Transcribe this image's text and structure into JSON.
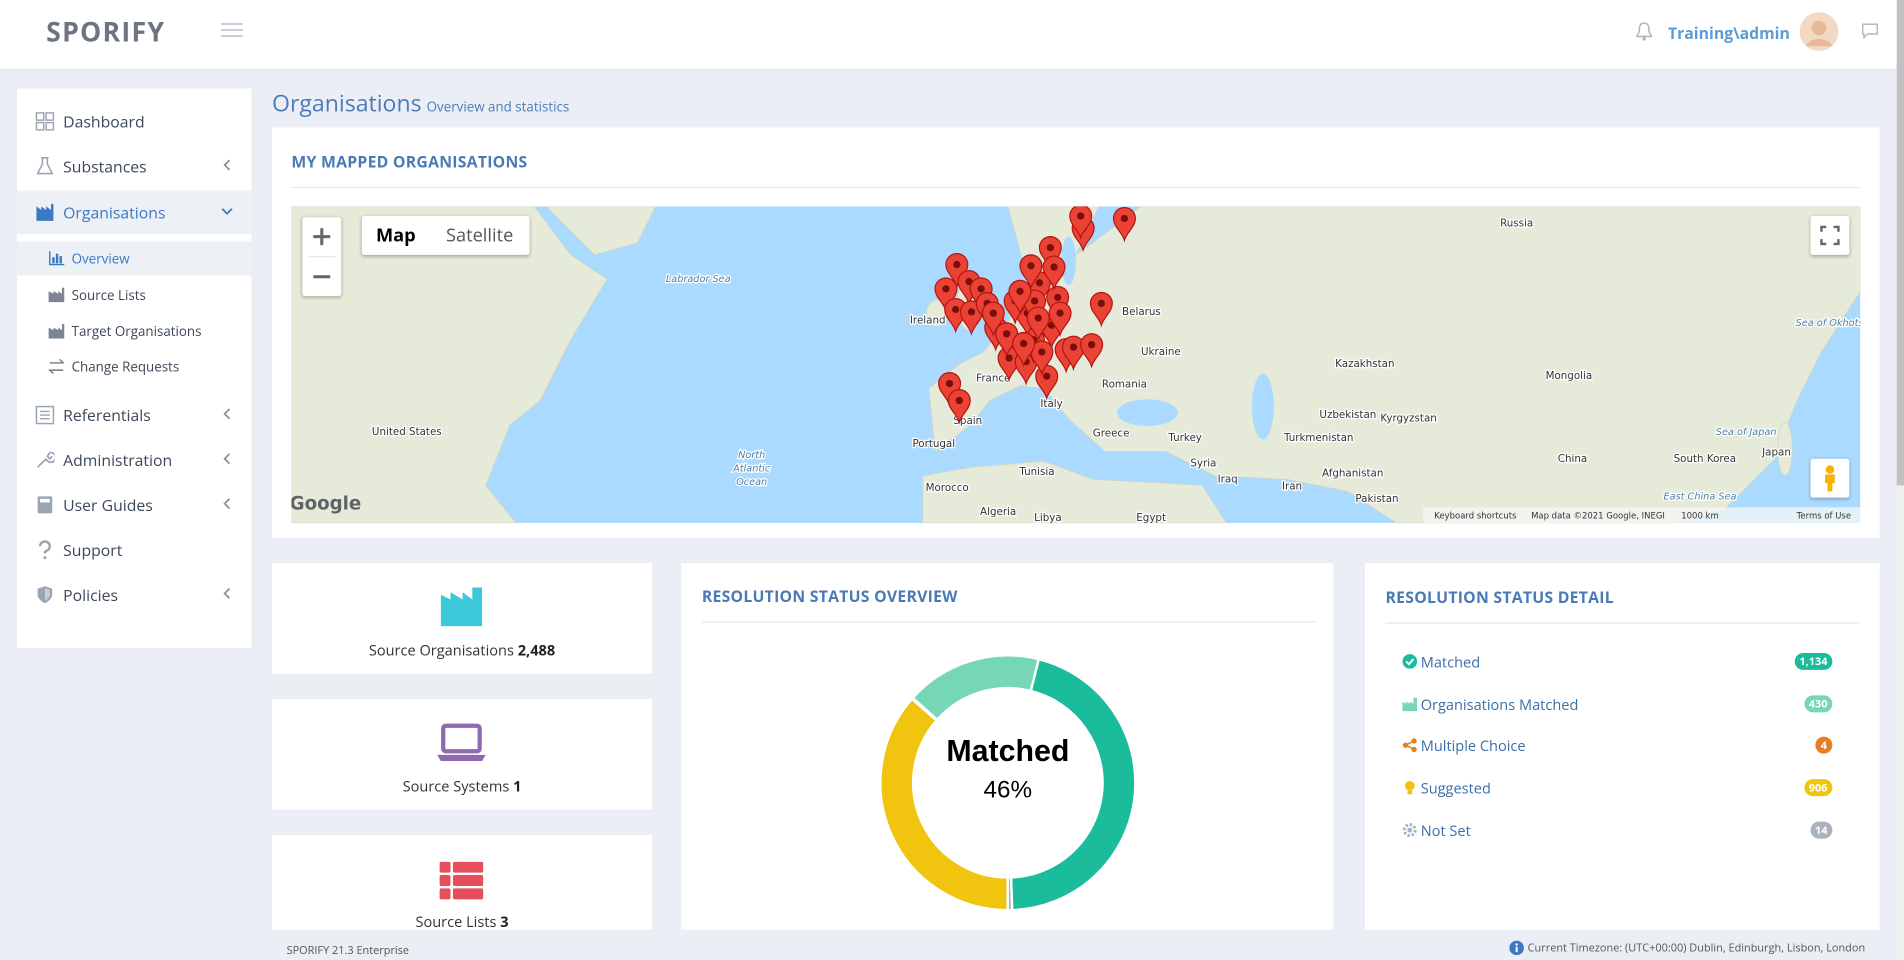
{
  "header": {
    "logo": "SPORIFY",
    "user": "Training\\admin"
  },
  "sidebar": {
    "items": [
      "Dashboard",
      "Substances",
      "Organisations",
      "Referentials",
      "Administration",
      "User Guides",
      "Support",
      "Policies"
    ],
    "organisations_submenu": [
      "Overview",
      "Source Lists",
      "Target Organisations",
      "Change Requests"
    ]
  },
  "page": {
    "title": "Organisations",
    "subtitle": "Overview and statistics"
  },
  "map": {
    "title": "MY MAPPED ORGANISATIONS",
    "map_types": [
      "Map",
      "Satellite"
    ],
    "labels": [
      "Russia",
      "Labrador Sea",
      "Ireland",
      "Belarus",
      "Ukraine",
      "Kazakhstan",
      "Mongolia",
      "Romania",
      "United States",
      "North",
      "Atlantic",
      "Ocean",
      "France",
      "Spain",
      "Portugal",
      "Italy",
      "Greece",
      "Turkey",
      "Uzbekistan",
      "Turkmenistan",
      "Kyrgyzstan",
      "China",
      "South Korea",
      "Japan",
      "Sea of Japan",
      "East China Sea",
      "Sea of Okhotsk",
      "Morocco",
      "Algeria",
      "Libya",
      "Egypt",
      "Tunisia",
      "Syria",
      "Iraq",
      "Iran",
      "Afghanistan",
      "Pakistan"
    ],
    "logo": "Google",
    "attribution": [
      "Keyboard shortcuts",
      "Map data ©2021 Google, INEGI",
      "1000 km",
      "Terms of Use"
    ]
  },
  "stats": [
    {
      "label": "Source Organisations",
      "value": "2,488"
    },
    {
      "label": "Source Systems",
      "value": "1"
    },
    {
      "label": "Source Lists",
      "value": "3"
    }
  ],
  "chart_data": {
    "type": "donut",
    "title": "RESOLUTION STATUS OVERVIEW",
    "categories": [
      "Matched",
      "Organisations Matched",
      "Multiple Choice",
      "Suggested",
      "Not Set"
    ],
    "values": [
      1134,
      430,
      4,
      906,
      14
    ],
    "value_labels": [
      "1,134",
      "430",
      "4",
      "906",
      "14"
    ],
    "colors": [
      "#1abc9c",
      "#76d7b8",
      "#e67e22",
      "#f1c40f",
      "#aab2bd"
    ],
    "center_label": "Matched",
    "center_value_label": "46%"
  },
  "detail": {
    "title": "RESOLUTION STATUS DETAIL"
  },
  "footer": {
    "version": "SPORIFY 21.3 Enterprise",
    "timezone": "Current Timezone: (UTC+00:00) Dublin, Edinburgh, Lisbon, London"
  }
}
